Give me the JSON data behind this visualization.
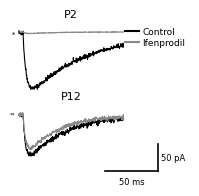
{
  "title_p2": "P2",
  "title_p12": "P12",
  "legend_control": "Control",
  "legend_ifenprodil": "Ifenprodil",
  "scale_bar_x": "50 ms",
  "scale_bar_y": "50 pA",
  "color_control": "#000000",
  "color_ifenprodil": "#888888",
  "background_color": "#ffffff",
  "seed": 42,
  "n_points": 400,
  "dt": 0.25,
  "title_fontsize": 8,
  "legend_fontsize": 6.5
}
